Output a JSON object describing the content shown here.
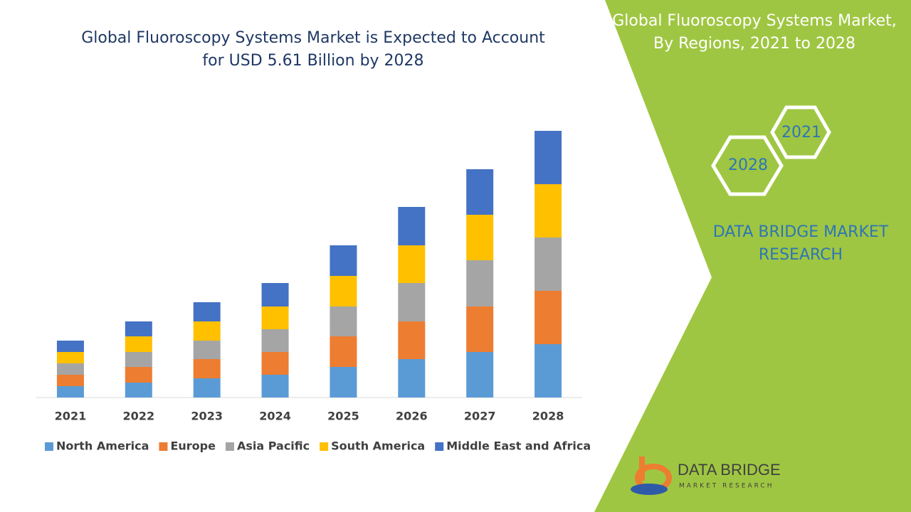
{
  "chart_data": {
    "type": "stacked-bar",
    "title": "Global Fluoroscopy Systems Market is Expected to Account for USD 5.61 Billion by 2028",
    "categories": [
      "2021",
      "2022",
      "2023",
      "2024",
      "2025",
      "2026",
      "2027",
      "2028"
    ],
    "series": [
      {
        "name": "North America",
        "color": "#5b9bd5",
        "values": [
          16,
          21,
          27,
          32,
          43,
          54,
          64,
          75
        ]
      },
      {
        "name": "Europe",
        "color": "#ed7d31",
        "values": [
          16,
          22,
          27,
          32,
          43,
          53,
          64,
          75
        ]
      },
      {
        "name": "Asia Pacific",
        "color": "#a5a5a5",
        "values": [
          16,
          21,
          26,
          32,
          42,
          54,
          65,
          75
        ]
      },
      {
        "name": "South America",
        "color": "#ffc000",
        "values": [
          16,
          22,
          27,
          32,
          43,
          53,
          64,
          75
        ]
      },
      {
        "name": "Middle East and Africa",
        "color": "#4472c4",
        "values": [
          16,
          21,
          27,
          33,
          43,
          54,
          64,
          75
        ]
      }
    ],
    "ylim": [
      0,
      400
    ],
    "grid": false,
    "legend": "bottom"
  },
  "side_panel": {
    "title": "Global Fluoroscopy Systems Market, By Regions, 2021 to 2028",
    "hexagons": [
      "2021",
      "2028"
    ],
    "brand": "DATA BRIDGE MARKET RESEARCH",
    "logo": {
      "name": "DATA BRIDGE",
      "tagline": "MARKET RESEARCH"
    }
  }
}
